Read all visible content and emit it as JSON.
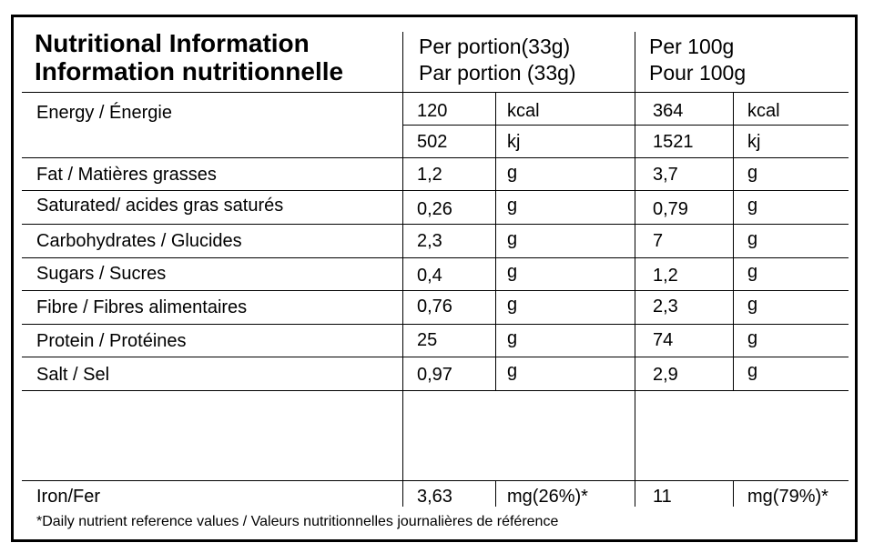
{
  "header": {
    "title_en": "Nutritional Information",
    "title_fr": "Information nutritionnelle",
    "portion_en": "Per portion(33g)",
    "portion_fr": "Par portion (33g)",
    "per100_en": "Per 100g",
    "per100_fr": "Pour 100g"
  },
  "energy": {
    "label": "Energy / Énergie",
    "kcal": {
      "portion": "120",
      "portion_unit": "kcal",
      "per100": "364",
      "per100_unit": "kcal"
    },
    "kj": {
      "portion": "502",
      "portion_unit": "kj",
      "per100": "1521",
      "per100_unit": "kj"
    }
  },
  "rows": [
    {
      "label": "Fat / Matières grasses",
      "portion": "1,2",
      "portion_unit": "g",
      "per100": "3,7",
      "per100_unit": "g"
    },
    {
      "label": "Saturated/ acides gras saturés",
      "portion": "0,26",
      "portion_unit": "g",
      "per100": "0,79",
      "per100_unit": "g"
    },
    {
      "label": "Carbohydrates / Glucides",
      "portion": "2,3",
      "portion_unit": "g",
      "per100": "7",
      "per100_unit": "g"
    },
    {
      "label": "Sugars / Sucres",
      "portion": "0,4",
      "portion_unit": "g",
      "per100": "1,2",
      "per100_unit": "g"
    },
    {
      "label": "Fibre / Fibres alimentaires",
      "portion": "0,76",
      "portion_unit": "g",
      "per100": "2,3",
      "per100_unit": "g"
    },
    {
      "label": "Protein / Protéines",
      "portion": "25",
      "portion_unit": "g",
      "per100": "74",
      "per100_unit": "g"
    },
    {
      "label": "Salt / Sel",
      "portion": "0,97",
      "portion_unit": "g",
      "per100": "2,9",
      "per100_unit": "g"
    }
  ],
  "iron": {
    "label": "Iron/Fer",
    "portion": "3,63",
    "portion_unit": "mg(26%)*",
    "per100": "11",
    "per100_unit": "mg(79%)*"
  },
  "footnote": "*Daily nutrient reference values / Valeurs nutritionnelles journalières de référence"
}
